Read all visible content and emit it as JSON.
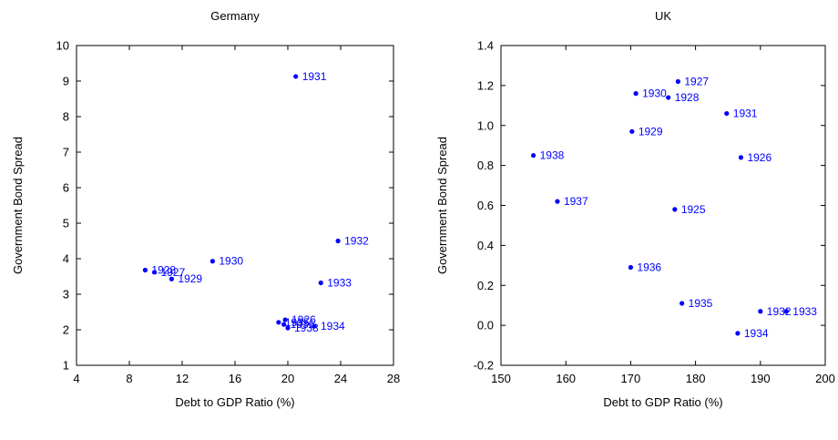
{
  "chart_data": [
    {
      "type": "scatter",
      "title": "Germany",
      "xlabel": "Debt to GDP Ratio (%)",
      "ylabel": "Government Bond Spread",
      "xlim": [
        4,
        28
      ],
      "ylim": [
        1,
        10
      ],
      "xticks": [
        4,
        8,
        12,
        16,
        20,
        24,
        28
      ],
      "yticks": [
        1,
        2,
        3,
        4,
        5,
        6,
        7,
        8,
        9,
        10
      ],
      "grid": false,
      "point_color": "#0000ff",
      "points": [
        {
          "label": "1931",
          "x": 20.6,
          "y": 9.13
        },
        {
          "label": "1932",
          "x": 23.8,
          "y": 4.5
        },
        {
          "label": "1930",
          "x": 14.3,
          "y": 3.93
        },
        {
          "label": "1928",
          "x": 9.2,
          "y": 3.68
        },
        {
          "label": "1927",
          "x": 9.9,
          "y": 3.62
        },
        {
          "label": "1929",
          "x": 11.2,
          "y": 3.43
        },
        {
          "label": "1933",
          "x": 22.5,
          "y": 3.32
        },
        {
          "label": "1926",
          "x": 19.8,
          "y": 2.28
        },
        {
          "label": "1935",
          "x": 19.3,
          "y": 2.21
        },
        {
          "label": "1936",
          "x": 19.7,
          "y": 2.15
        },
        {
          "label": "1934",
          "x": 22.0,
          "y": 2.1
        },
        {
          "label": "1938",
          "x": 20.0,
          "y": 2.05
        }
      ]
    },
    {
      "type": "scatter",
      "title": "UK",
      "xlabel": "Debt to GDP Ratio (%)",
      "ylabel": "Government Bond Spread",
      "xlim": [
        150,
        200
      ],
      "ylim": [
        -0.2,
        1.4
      ],
      "xticks": [
        150,
        160,
        170,
        180,
        190,
        200
      ],
      "yticks": [
        -0.2,
        0.0,
        0.2,
        0.4,
        0.6,
        0.8,
        1.0,
        1.2,
        1.4
      ],
      "ytick_labels": [
        "-0.2",
        "0.0",
        "0.2",
        "0.4",
        "0.6",
        "0.8",
        "1.0",
        "1.2",
        "1.4"
      ],
      "grid": false,
      "point_color": "#0000ff",
      "points": [
        {
          "label": "1927",
          "x": 177.3,
          "y": 1.22
        },
        {
          "label": "1930",
          "x": 170.8,
          "y": 1.16
        },
        {
          "label": "1928",
          "x": 175.8,
          "y": 1.14
        },
        {
          "label": "1931",
          "x": 184.8,
          "y": 1.06
        },
        {
          "label": "1929",
          "x": 170.2,
          "y": 0.97
        },
        {
          "label": "1938",
          "x": 155.0,
          "y": 0.85
        },
        {
          "label": "1926",
          "x": 187.0,
          "y": 0.84
        },
        {
          "label": "1937",
          "x": 158.7,
          "y": 0.62
        },
        {
          "label": "1925",
          "x": 176.8,
          "y": 0.58
        },
        {
          "label": "1936",
          "x": 170.0,
          "y": 0.29
        },
        {
          "label": "1935",
          "x": 177.9,
          "y": 0.11
        },
        {
          "label": "1932",
          "x": 190.0,
          "y": 0.07
        },
        {
          "label": "1933",
          "x": 194.0,
          "y": 0.07
        },
        {
          "label": "1934",
          "x": 186.5,
          "y": -0.04
        }
      ]
    }
  ]
}
